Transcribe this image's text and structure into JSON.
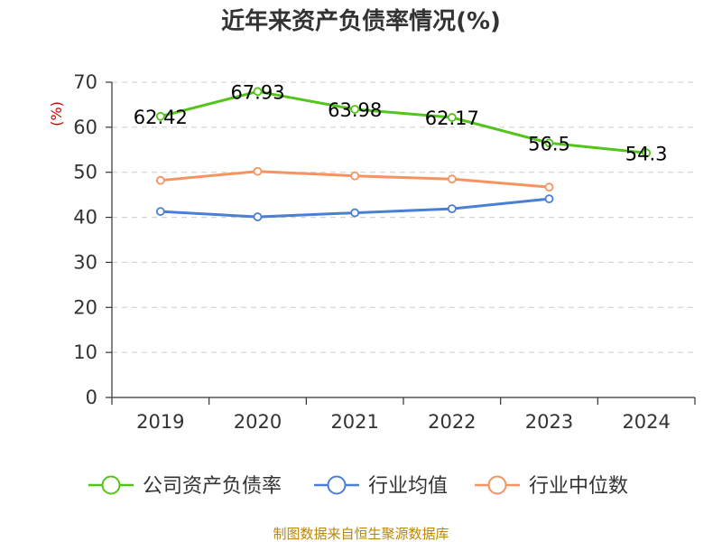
{
  "chart_data": {
    "type": "line",
    "title": "近年来资产负债率情况(%)",
    "ylabel": "(%)",
    "xlabel": "",
    "categories": [
      "2019",
      "2020",
      "2021",
      "2022",
      "2023",
      "2024"
    ],
    "ylim": [
      0,
      70
    ],
    "yticks": [
      0,
      10,
      20,
      30,
      40,
      50,
      60,
      70
    ],
    "grid": true,
    "legend_position": "bottom",
    "series": [
      {
        "name": "公司资产负债率",
        "color": "#52c41a",
        "values": [
          62.42,
          67.93,
          63.98,
          62.17,
          56.5,
          54.3
        ],
        "labels": [
          "62.42",
          "67.93",
          "63.98",
          "62.17",
          "56.5",
          "54.3"
        ]
      },
      {
        "name": "行业均值",
        "color": "#4a7fd6",
        "values": [
          41.3,
          40.1,
          41.0,
          41.9,
          44.1,
          null
        ]
      },
      {
        "name": "行业中位数",
        "color": "#f59460",
        "values": [
          48.2,
          50.2,
          49.2,
          48.5,
          46.7,
          null
        ]
      }
    ]
  },
  "footer": {
    "source": "制图数据来自恒生聚源数据库"
  }
}
